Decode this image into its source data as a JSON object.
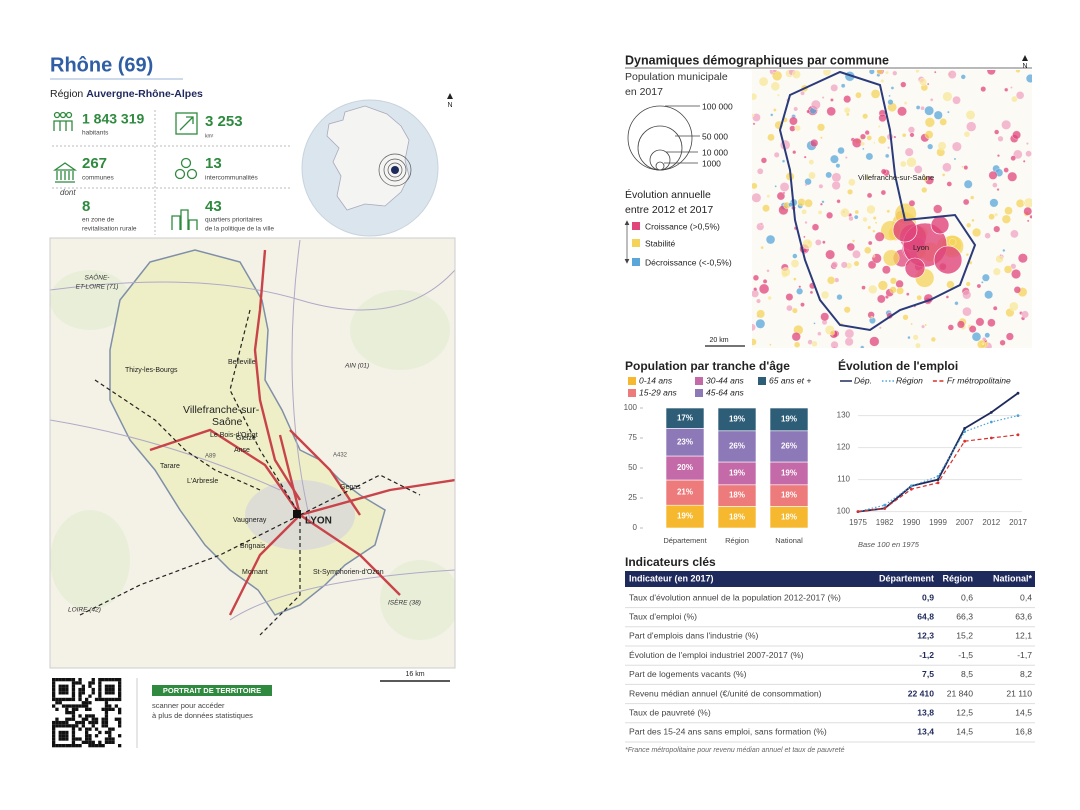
{
  "header": {
    "title": "Rhône (69)",
    "region_label": "Région",
    "region_name": "Auvergne-Rhône-Alpes",
    "north": "N"
  },
  "stats": [
    {
      "value": "1 843 319",
      "label": [
        "habitants"
      ]
    },
    {
      "value": "3 253",
      "label": [
        "km²"
      ]
    },
    {
      "value": "267",
      "label": [
        "communes"
      ]
    },
    {
      "value": "13",
      "label": [
        "intercommunalités"
      ]
    },
    {
      "value": "8",
      "label": [
        "en zone de",
        "revitalisation rurale"
      ]
    },
    {
      "value": "43",
      "label": [
        "quartiers prioritaires",
        "de la politique de la ville"
      ]
    }
  ],
  "stats_note": "dont",
  "map": {
    "labels": [
      [
        "SAÔNE-",
        "ET-LOIRE (71)"
      ],
      "Belleville",
      "Thizy-les-Bourgs",
      [
        "Villefranche-sur-",
        "Saône"
      ],
      "AIN (01)",
      "Gleizé",
      "Anse",
      "Tarare",
      "Le Bois-d'Oingt",
      "L'Arbresle",
      "Genas",
      "Vaugneray",
      "LYON",
      "Brignais",
      "Mornant",
      "St-Symphorien-d'Ozon",
      "LOIRE (42)",
      "ISÈRE (38)",
      "A89",
      "A432"
    ],
    "scale": "16 km"
  },
  "footer": {
    "badge": "PORTRAIT DE TERRITOIRE",
    "text": [
      "scanner pour accéder",
      "à plus de données statistiques"
    ]
  },
  "demography": {
    "title": "Dynamiques démographiques par commune",
    "north": "N",
    "size_legend": {
      "title": [
        "Population municipale",
        "en 2017"
      ],
      "sizes": [
        "100 000",
        "50 000",
        "10 000",
        "1000"
      ]
    },
    "color_legend": {
      "title": [
        "Évolution annuelle",
        "entre 2012 et 2017"
      ],
      "items": [
        "Croissance (>0,5%)",
        "Stabilité",
        "Décroissance (<-0,5%)"
      ]
    },
    "labels": [
      "Villefranche-sur-Saône",
      "Lyon"
    ],
    "scale": "20 km"
  },
  "chart_data": [
    {
      "type": "bar",
      "stacked": true,
      "title": "Population par tranche d'âge",
      "categories": [
        "Département",
        "Région",
        "National"
      ],
      "series": [
        {
          "name": "0-14 ans",
          "color": "#f5b82e",
          "values": [
            19,
            18,
            18
          ],
          "value_labels": [
            "19%",
            "18%",
            "18%"
          ]
        },
        {
          "name": "15-29 ans",
          "color": "#ee7b7b",
          "values": [
            21,
            18,
            18
          ],
          "value_labels": [
            "21%",
            "18%",
            "18%"
          ]
        },
        {
          "name": "30-44 ans",
          "color": "#c46aa8",
          "values": [
            20,
            19,
            19
          ],
          "value_labels": [
            "20%",
            "19%",
            "19%"
          ]
        },
        {
          "name": "45-64 ans",
          "color": "#8d79b7",
          "values": [
            23,
            26,
            26
          ],
          "value_labels": [
            "23%",
            "26%",
            "26%"
          ]
        },
        {
          "name": "65 ans et +",
          "color": "#2e5d78",
          "values": [
            17,
            19,
            19
          ],
          "value_labels": [
            "17%",
            "19%",
            "19%"
          ]
        }
      ],
      "ylim": [
        0,
        100
      ],
      "yticks": [
        0,
        25,
        50,
        75,
        100
      ]
    },
    {
      "type": "line",
      "title": "Évolution de l'emploi",
      "categories": [
        "1975",
        "1982",
        "1990",
        "1999",
        "2007",
        "2012",
        "2017"
      ],
      "series": [
        {
          "name": "Dép.",
          "color": "#1f2a5c",
          "dash": "solid",
          "values": [
            100,
            101,
            108,
            110,
            126,
            131,
            137
          ]
        },
        {
          "name": "Région",
          "color": "#4aa3d8",
          "dash": "dotted",
          "values": [
            100,
            102,
            108,
            111,
            125,
            128,
            130
          ]
        },
        {
          "name": "Fr métropolitaine",
          "color": "#d9302c",
          "dash": "dashed",
          "values": [
            100,
            101,
            107,
            109,
            122,
            123,
            124
          ]
        }
      ],
      "ylim": [
        98,
        138
      ],
      "yticks": [
        100,
        110,
        120,
        130
      ],
      "grid": true,
      "note": "Base 100 en 1975"
    }
  ],
  "table": {
    "title": "Indicateurs clés",
    "header": [
      "Indicateur (en 2017)",
      "Département",
      "Région",
      "National*"
    ],
    "rows": [
      [
        "Taux d'évolution annuel de la population 2012-2017 (%)",
        "0,9",
        "0,6",
        "0,4"
      ],
      [
        "Taux d'emploi (%)",
        "64,8",
        "66,3",
        "63,6"
      ],
      [
        "Part d'emplois dans l'industrie (%)",
        "12,3",
        "15,2",
        "12,1"
      ],
      [
        "Évolution de l'emploi industriel 2007-2017 (%)",
        "-1,2",
        "-1,5",
        "-1,7"
      ],
      [
        "Part de logements vacants (%)",
        "7,5",
        "8,5",
        "8,2"
      ],
      [
        "Revenu médian annuel (€/unité de consommation)",
        "22 410",
        "21 840",
        "21 110"
      ],
      [
        "Taux de pauvreté (%)",
        "13,8",
        "12,5",
        "14,5"
      ],
      [
        "Part des 15-24 ans sans emploi, sans formation (%)",
        "13,4",
        "14,5",
        "16,8"
      ]
    ],
    "footnote": "*France métropolitaine pour revenu médian annuel et taux de pauvreté"
  }
}
